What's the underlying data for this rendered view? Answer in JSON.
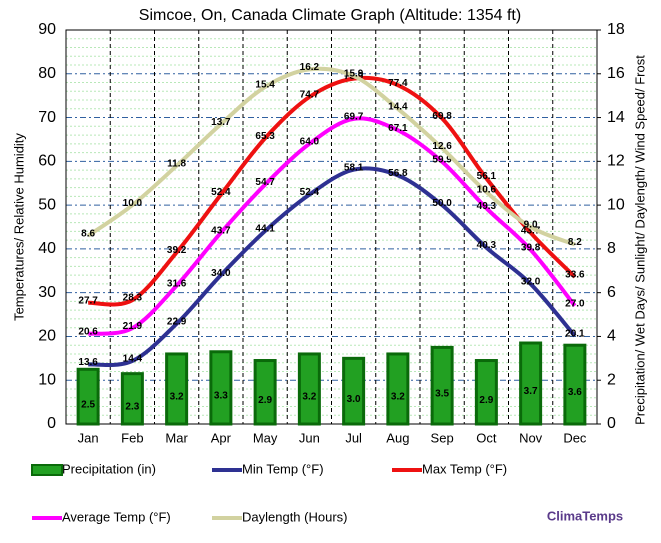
{
  "chart_data": {
    "type": "combo",
    "title": "Simcoe, On, Canada Climate Graph (Altitude: 1354 ft)",
    "y_label": "Temperatures/ Relative Humidity",
    "y2_label": "Precipitation/ Wet Days/ Sunlight/ Daylength/ Wind Speed/ Frost",
    "brand": "ClimaTemps",
    "categories": [
      "Jan",
      "Feb",
      "Mar",
      "Apr",
      "May",
      "Jun",
      "Jul",
      "Aug",
      "Sep",
      "Oct",
      "Nov",
      "Dec"
    ],
    "ylim": [
      0,
      90
    ],
    "yticks": [
      0,
      10,
      20,
      30,
      40,
      50,
      60,
      70,
      80,
      90
    ],
    "y2lim": [
      0,
      18
    ],
    "y2ticks": [
      0,
      2,
      4,
      6,
      8,
      10,
      12,
      14,
      16,
      18
    ],
    "grid": true,
    "series": [
      {
        "name": "Precipitation (in)",
        "type": "bar",
        "axis": "y2",
        "color": "#22a022",
        "values": [
          2.5,
          2.3,
          3.2,
          3.3,
          2.9,
          3.2,
          3.0,
          3.2,
          3.5,
          2.9,
          3.7,
          3.6
        ],
        "value_labels": [
          "2.5",
          "2.3",
          "3.2",
          "3.3",
          "2.9",
          "3.2",
          "3.0",
          "3.2",
          "3.5",
          "2.9",
          "3.7",
          "3.6"
        ]
      },
      {
        "name": "Min Temp (°F)",
        "type": "line",
        "color": "#2e3192",
        "values": [
          13.6,
          14.4,
          22.9,
          34.0,
          44.1,
          52.4,
          58.1,
          56.8,
          50.0,
          40.3,
          32.0,
          20.1
        ],
        "value_labels": [
          "13.6",
          "14.4",
          "22.9",
          "34.0",
          "44.1",
          "52.4",
          "58.1",
          "56.8",
          "50.0",
          "40.3",
          "32.0",
          "20.1"
        ]
      },
      {
        "name": "Max Temp (°F)",
        "type": "line",
        "color": "#ee1111",
        "values": [
          27.7,
          28.3,
          39.2,
          52.4,
          65.3,
          74.7,
          78.9,
          77.4,
          69.8,
          56.1,
          43.7,
          33.6
        ],
        "value_labels": [
          "27.7",
          "28.3",
          "39.2",
          "52.4",
          "65.3",
          "74.7",
          "78.9",
          "77.4",
          "69.8",
          "56.1",
          "43.7",
          "33.6"
        ]
      },
      {
        "name": "Average Temp (°F)",
        "type": "line",
        "color": "#ff00ff",
        "values": [
          20.6,
          21.9,
          31.6,
          43.7,
          54.7,
          64.0,
          69.7,
          67.1,
          59.9,
          49.3,
          39.8,
          27.0
        ],
        "value_labels": [
          "20.6",
          "21.9",
          "31.6",
          "43.7",
          "54.7",
          "64.0",
          "69.7",
          "67.1",
          "59.9",
          "49.3",
          "39.8",
          "27.0"
        ]
      },
      {
        "name": "Daylength (Hours)",
        "type": "line",
        "axis": "y2",
        "color": "#d2d2a0",
        "values": [
          8.6,
          10.0,
          11.8,
          13.7,
          15.4,
          16.2,
          15.9,
          14.4,
          12.6,
          10.6,
          9.0,
          8.2
        ],
        "value_labels": [
          "8.6",
          "10.0",
          "11.8",
          "13.7",
          "15.4",
          "16.2",
          "15.9",
          "14.4",
          "12.6",
          "10.6",
          "9.0",
          "8.2"
        ]
      }
    ]
  }
}
